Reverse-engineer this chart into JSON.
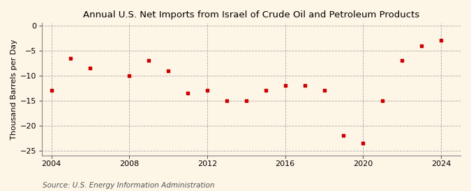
{
  "title": "Annual U.S. Net Imports from Israel of Crude Oil and Petroleum Products",
  "ylabel": "Thousand Barrels per Day",
  "source": "Source: U.S. Energy Information Administration",
  "background_color": "#fdf5e6",
  "plot_background_color": "#fdf5e6",
  "grid_color": "#aaaaaa",
  "marker_color": "#cc0000",
  "years": [
    2004,
    2005,
    2006,
    2008,
    2009,
    2010,
    2011,
    2012,
    2013,
    2014,
    2015,
    2016,
    2017,
    2018,
    2019,
    2020,
    2021,
    2022,
    2023,
    2024
  ],
  "values": [
    -13.0,
    -6.5,
    -8.5,
    -10.0,
    -7.0,
    -9.0,
    -13.5,
    -13.0,
    -15.0,
    -15.0,
    -13.0,
    -12.0,
    -12.0,
    -13.0,
    -22.0,
    -23.5,
    -15.0,
    -7.0,
    -4.0,
    -3.0
  ],
  "xlim": [
    2003.5,
    2025.0
  ],
  "ylim": [
    -26,
    0.5
  ],
  "xticks": [
    2004,
    2008,
    2012,
    2016,
    2020,
    2024
  ],
  "yticks": [
    0,
    -5,
    -10,
    -15,
    -20,
    -25
  ],
  "title_fontsize": 9.5,
  "axis_fontsize": 8,
  "source_fontsize": 7.5,
  "marker_size": 12
}
